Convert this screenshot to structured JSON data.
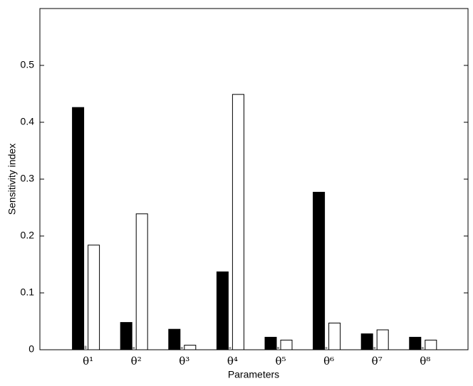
{
  "chart_data": {
    "type": "bar",
    "x_label": "Parameters",
    "y_label": "Sensitivity index",
    "categories": [
      "θ¹",
      "θ²",
      "θ³",
      "θ⁴",
      "θ⁵",
      "θ⁶",
      "θ⁷",
      "θ⁸"
    ],
    "series": [
      {
        "color": "#000000",
        "values": [
          0.426,
          0.048,
          0.036,
          0.137,
          0.022,
          0.277,
          0.028,
          0.022
        ]
      },
      {
        "color": "#999999",
        "values": [
          0.007,
          0.005,
          0.005,
          0.005,
          0.005,
          0.005,
          0.005,
          0.005
        ]
      },
      {
        "color": "#ffffff",
        "values": [
          0.184,
          0.239,
          0.008,
          0.449,
          0.017,
          0.047,
          0.035,
          0.017
        ]
      }
    ],
    "ylim": [
      0,
      0.6
    ],
    "yticks": [
      0,
      0.1,
      0.2,
      0.3,
      0.4,
      0.5
    ]
  }
}
